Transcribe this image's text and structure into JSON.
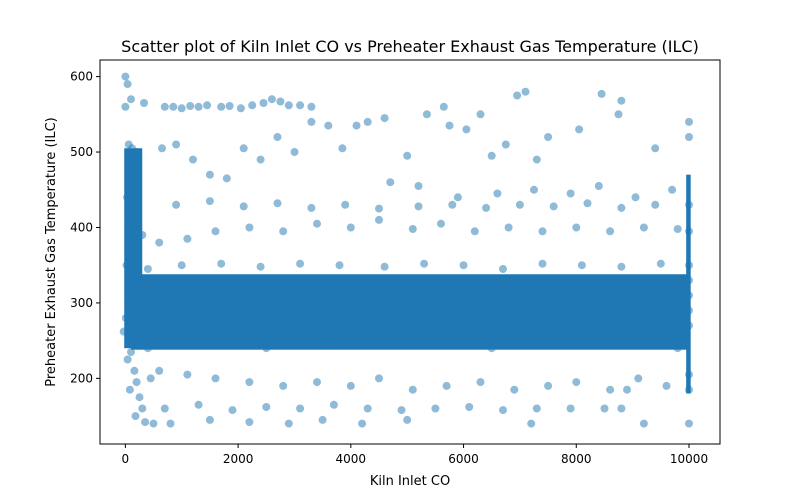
{
  "chart_data": {
    "type": "scatter",
    "title": "Scatter plot of Kiln Inlet CO vs Preheater Exhaust Gas Temperature (ILC)",
    "xlabel": "Kiln Inlet CO",
    "ylabel": "Preheater Exhaust Gas Temperature (ILC)",
    "xlim": [
      -450,
      10550
    ],
    "ylim": [
      113,
      622
    ],
    "xticks": [
      0,
      2000,
      4000,
      6000,
      8000,
      10000
    ],
    "yticks": [
      200,
      300,
      400,
      500,
      600
    ],
    "grid": false,
    "point_color": "#1f77b4",
    "point_alpha": 0.5,
    "series": [
      {
        "points": [
          [
            0,
            600
          ],
          [
            40,
            590
          ],
          [
            100,
            570
          ],
          [
            0,
            560
          ],
          [
            60,
            510
          ],
          [
            120,
            505
          ],
          [
            200,
            500
          ],
          [
            160,
            480
          ],
          [
            80,
            460
          ],
          [
            30,
            440
          ],
          [
            220,
            430
          ],
          [
            100,
            410
          ],
          [
            60,
            395
          ],
          [
            300,
            390
          ],
          [
            150,
            370
          ],
          [
            20,
            350
          ],
          [
            90,
            330
          ],
          [
            250,
            320
          ],
          [
            50,
            300
          ],
          [
            140,
            290
          ],
          [
            10,
            280
          ],
          [
            -30,
            262
          ],
          [
            120,
            270
          ],
          [
            60,
            250
          ],
          [
            100,
            235
          ],
          [
            40,
            225
          ],
          [
            160,
            210
          ],
          [
            200,
            195
          ],
          [
            80,
            185
          ],
          [
            250,
            175
          ],
          [
            300,
            160
          ],
          [
            180,
            150
          ],
          [
            350,
            142
          ],
          [
            500,
            140
          ],
          [
            450,
            200
          ],
          [
            700,
            560
          ],
          [
            850,
            560
          ],
          [
            1000,
            558
          ],
          [
            1150,
            561
          ],
          [
            1300,
            560
          ],
          [
            1450,
            562
          ],
          [
            1700,
            560
          ],
          [
            1850,
            561
          ],
          [
            2050,
            558
          ],
          [
            2250,
            562
          ],
          [
            2450,
            565
          ],
          [
            2600,
            570
          ],
          [
            2750,
            567
          ],
          [
            2900,
            562
          ],
          [
            3100,
            562
          ],
          [
            3300,
            560
          ],
          [
            330,
            565
          ],
          [
            650,
            505
          ],
          [
            900,
            510
          ],
          [
            1200,
            490
          ],
          [
            1500,
            470
          ],
          [
            1800,
            465
          ],
          [
            2100,
            505
          ],
          [
            2400,
            490
          ],
          [
            2700,
            520
          ],
          [
            3000,
            500
          ],
          [
            3300,
            540
          ],
          [
            3600,
            535
          ],
          [
            3850,
            505
          ],
          [
            4100,
            535
          ],
          [
            4300,
            540
          ],
          [
            4600,
            545
          ],
          [
            5000,
            495
          ],
          [
            5350,
            550
          ],
          [
            5650,
            560
          ],
          [
            5750,
            535
          ],
          [
            6050,
            530
          ],
          [
            6300,
            550
          ],
          [
            6500,
            495
          ],
          [
            6750,
            510
          ],
          [
            6950,
            575
          ],
          [
            7100,
            580
          ],
          [
            7300,
            490
          ],
          [
            7500,
            520
          ],
          [
            8050,
            530
          ],
          [
            8450,
            577
          ],
          [
            8800,
            568
          ],
          [
            8750,
            550
          ],
          [
            9400,
            505
          ],
          [
            10000,
            540
          ],
          [
            10000,
            520
          ],
          [
            4700,
            460
          ],
          [
            5200,
            455
          ],
          [
            5900,
            440
          ],
          [
            6600,
            445
          ],
          [
            7250,
            450
          ],
          [
            7900,
            445
          ],
          [
            8400,
            455
          ],
          [
            9050,
            440
          ],
          [
            9700,
            450
          ],
          [
            600,
            380
          ],
          [
            1100,
            385
          ],
          [
            1600,
            395
          ],
          [
            2200,
            400
          ],
          [
            2800,
            395
          ],
          [
            3400,
            405
          ],
          [
            4000,
            400
          ],
          [
            4500,
            410
          ],
          [
            5100,
            398
          ],
          [
            5600,
            405
          ],
          [
            6200,
            395
          ],
          [
            6800,
            400
          ],
          [
            7400,
            395
          ],
          [
            8000,
            400
          ],
          [
            8600,
            395
          ],
          [
            9200,
            400
          ],
          [
            9800,
            398
          ],
          [
            10000,
            395
          ],
          [
            900,
            430
          ],
          [
            1500,
            435
          ],
          [
            2100,
            428
          ],
          [
            2700,
            432
          ],
          [
            3300,
            426
          ],
          [
            3900,
            430
          ],
          [
            4500,
            425
          ],
          [
            5200,
            428
          ],
          [
            5800,
            430
          ],
          [
            6400,
            426
          ],
          [
            7000,
            430
          ],
          [
            7600,
            428
          ],
          [
            8200,
            432
          ],
          [
            8800,
            426
          ],
          [
            9400,
            430
          ],
          [
            10000,
            430
          ],
          [
            400,
            345
          ],
          [
            1000,
            350
          ],
          [
            1700,
            352
          ],
          [
            2400,
            348
          ],
          [
            3100,
            352
          ],
          [
            3800,
            350
          ],
          [
            4600,
            348
          ],
          [
            5300,
            352
          ],
          [
            6000,
            350
          ],
          [
            6700,
            345
          ],
          [
            7400,
            352
          ],
          [
            8100,
            350
          ],
          [
            8800,
            348
          ],
          [
            9500,
            352
          ],
          [
            10000,
            350
          ],
          [
            300,
            330
          ],
          [
            1000,
            330
          ],
          [
            2000,
            330
          ],
          [
            3000,
            330
          ],
          [
            4000,
            330
          ],
          [
            5000,
            330
          ],
          [
            6000,
            330
          ],
          [
            7000,
            330
          ],
          [
            8000,
            330
          ],
          [
            9000,
            330
          ],
          [
            10000,
            330
          ],
          [
            300,
            310
          ],
          [
            1000,
            310
          ],
          [
            2000,
            310
          ],
          [
            3000,
            310
          ],
          [
            4000,
            310
          ],
          [
            5000,
            310
          ],
          [
            6000,
            310
          ],
          [
            7000,
            310
          ],
          [
            8000,
            310
          ],
          [
            9000,
            310
          ],
          [
            10000,
            310
          ],
          [
            300,
            290
          ],
          [
            1000,
            290
          ],
          [
            2000,
            290
          ],
          [
            3000,
            290
          ],
          [
            4000,
            290
          ],
          [
            5000,
            290
          ],
          [
            6000,
            290
          ],
          [
            7000,
            290
          ],
          [
            8000,
            290
          ],
          [
            9000,
            290
          ],
          [
            10000,
            290
          ],
          [
            300,
            270
          ],
          [
            1000,
            270
          ],
          [
            2000,
            270
          ],
          [
            3000,
            270
          ],
          [
            4000,
            270
          ],
          [
            5000,
            270
          ],
          [
            6000,
            270
          ],
          [
            7000,
            270
          ],
          [
            8000,
            270
          ],
          [
            9000,
            270
          ],
          [
            10000,
            270
          ],
          [
            300,
            255
          ],
          [
            1500,
            255
          ],
          [
            3500,
            255
          ],
          [
            5500,
            255
          ],
          [
            7500,
            255
          ],
          [
            9500,
            255
          ],
          [
            400,
            240
          ],
          [
            2500,
            240
          ],
          [
            6500,
            240
          ],
          [
            9800,
            240
          ],
          [
            600,
            210
          ],
          [
            1100,
            205
          ],
          [
            1600,
            200
          ],
          [
            2200,
            195
          ],
          [
            2800,
            190
          ],
          [
            3400,
            195
          ],
          [
            4000,
            190
          ],
          [
            4500,
            200
          ],
          [
            5100,
            185
          ],
          [
            5700,
            190
          ],
          [
            6300,
            195
          ],
          [
            6900,
            185
          ],
          [
            7500,
            190
          ],
          [
            8000,
            195
          ],
          [
            8600,
            185
          ],
          [
            9100,
            200
          ],
          [
            9600,
            190
          ],
          [
            10000,
            205
          ],
          [
            10000,
            185
          ],
          [
            700,
            160
          ],
          [
            1300,
            165
          ],
          [
            1900,
            158
          ],
          [
            2500,
            162
          ],
          [
            3100,
            160
          ],
          [
            3700,
            165
          ],
          [
            4300,
            160
          ],
          [
            4900,
            158
          ],
          [
            5500,
            160
          ],
          [
            6100,
            162
          ],
          [
            6700,
            158
          ],
          [
            7300,
            160
          ],
          [
            7900,
            160
          ],
          [
            8500,
            160
          ],
          [
            8800,
            160
          ],
          [
            800,
            140
          ],
          [
            1500,
            145
          ],
          [
            2200,
            142
          ],
          [
            2900,
            140
          ],
          [
            3500,
            145
          ],
          [
            4200,
            140
          ],
          [
            5000,
            145
          ],
          [
            7200,
            140
          ],
          [
            9200,
            140
          ],
          [
            10000,
            140
          ],
          [
            8900,
            185
          ]
        ]
      }
    ]
  }
}
